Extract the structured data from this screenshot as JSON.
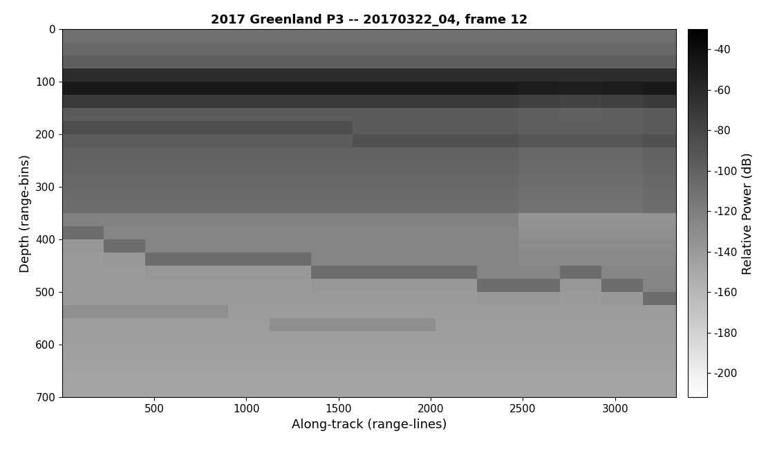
{
  "chart_data": {
    "type": "heatmap",
    "title": "2017 Greenland P3 -- 20170322_04, frame 12",
    "x_label": "Along-track (range-lines)",
    "y_label": "Depth (range-bins)",
    "xlim": [
      1,
      3330
    ],
    "ylim": [
      700,
      0
    ],
    "xticks": [
      500,
      1000,
      1500,
      2000,
      2500,
      3000
    ],
    "yticks": [
      0,
      100,
      200,
      300,
      400,
      500,
      600,
      700
    ],
    "x_edges": [
      1,
      225,
      450,
      675,
      900,
      1125,
      1350,
      1575,
      1800,
      2025,
      2250,
      2475,
      2700,
      2925,
      3150,
      3330
    ],
    "y_edges": [
      0,
      25,
      50,
      75,
      100,
      125,
      150,
      175,
      200,
      225,
      250,
      275,
      300,
      325,
      350,
      375,
      400,
      425,
      450,
      475,
      500,
      525,
      550,
      575,
      600,
      625,
      650,
      675,
      700
    ],
    "cells": [
      [
        -110,
        -110,
        -110,
        -110,
        -110,
        -110,
        -110,
        -110,
        -110,
        -110,
        -110,
        -110,
        -110,
        -110,
        -110
      ],
      [
        -105,
        -105,
        -105,
        -105,
        -105,
        -105,
        -105,
        -105,
        -105,
        -105,
        -105,
        -105,
        -105,
        -105,
        -105
      ],
      [
        -98,
        -98,
        -98,
        -98,
        -98,
        -98,
        -98,
        -98,
        -98,
        -98,
        -98,
        -98,
        -98,
        -98,
        -98
      ],
      [
        -62,
        -62,
        -62,
        -62,
        -62,
        -62,
        -62,
        -62,
        -62,
        -62,
        -62,
        -62,
        -62,
        -62,
        -62
      ],
      [
        -48,
        -48,
        -48,
        -48,
        -48,
        -48,
        -48,
        -48,
        -48,
        -48,
        -48,
        -50,
        -52,
        -50,
        -48
      ],
      [
        -72,
        -72,
        -72,
        -72,
        -72,
        -72,
        -72,
        -72,
        -72,
        -72,
        -72,
        -76,
        -78,
        -76,
        -72
      ],
      [
        -95,
        -95,
        -95,
        -95,
        -95,
        -95,
        -95,
        -95,
        -95,
        -95,
        -95,
        -98,
        -99,
        -98,
        -95
      ],
      [
        -86,
        -86,
        -86,
        -86,
        -86,
        -86,
        -86,
        -95,
        -95,
        -95,
        -95,
        -98,
        -98,
        -98,
        -95
      ],
      [
        -96,
        -96,
        -96,
        -96,
        -96,
        -96,
        -96,
        -88,
        -88,
        -88,
        -88,
        -92,
        -92,
        -92,
        -88
      ],
      [
        -100,
        -100,
        -100,
        -100,
        -100,
        -100,
        -100,
        -100,
        -100,
        -100,
        -100,
        -104,
        -104,
        -104,
        -100
      ],
      [
        -102,
        -102,
        -102,
        -102,
        -102,
        -102,
        -102,
        -102,
        -102,
        -102,
        -102,
        -106,
        -106,
        -106,
        -102
      ],
      [
        -104,
        -104,
        -104,
        -104,
        -104,
        -104,
        -104,
        -104,
        -104,
        -104,
        -104,
        -108,
        -108,
        -108,
        -104
      ],
      [
        -106,
        -106,
        -106,
        -106,
        -106,
        -106,
        -106,
        -106,
        -106,
        -106,
        -106,
        -110,
        -110,
        -110,
        -106
      ],
      [
        -108,
        -108,
        -108,
        -108,
        -108,
        -108,
        -108,
        -108,
        -108,
        -108,
        -108,
        -112,
        -112,
        -112,
        -108
      ],
      [
        -122,
        -122,
        -122,
        -122,
        -122,
        -122,
        -122,
        -122,
        -122,
        -122,
        -122,
        -135,
        -135,
        -135,
        -135
      ],
      [
        -108,
        -125,
        -125,
        -125,
        -125,
        -125,
        -125,
        -125,
        -125,
        -125,
        -125,
        -132,
        -132,
        -132,
        -132
      ],
      [
        -138,
        -108,
        -125,
        -125,
        -125,
        -125,
        -125,
        -125,
        -125,
        -125,
        -125,
        -130,
        -130,
        -130,
        -130
      ],
      [
        -140,
        -138,
        -108,
        -108,
        -108,
        -108,
        -125,
        -125,
        -125,
        -125,
        -125,
        -128,
        -128,
        -128,
        -128
      ],
      [
        -140,
        -140,
        -138,
        -138,
        -138,
        -138,
        -108,
        -108,
        -108,
        -108,
        -125,
        -125,
        -108,
        -125,
        -125
      ],
      [
        -140,
        -140,
        -140,
        -140,
        -140,
        -140,
        -138,
        -138,
        -138,
        -138,
        -108,
        -108,
        -138,
        -108,
        -125
      ],
      [
        -140,
        -140,
        -140,
        -140,
        -140,
        -140,
        -140,
        -140,
        -140,
        -140,
        -138,
        -138,
        -140,
        -138,
        -108
      ],
      [
        -132,
        -132,
        -132,
        -132,
        -141,
        -141,
        -141,
        -141,
        -141,
        -141,
        -141,
        -141,
        -141,
        -141,
        -141
      ],
      [
        -142,
        -142,
        -142,
        -142,
        -142,
        -132,
        -132,
        -132,
        -132,
        -142,
        -142,
        -142,
        -142,
        -142,
        -142
      ],
      [
        -143,
        -143,
        -143,
        -143,
        -143,
        -143,
        -143,
        -143,
        -143,
        -143,
        -143,
        -143,
        -143,
        -143,
        -143
      ],
      [
        -144,
        -144,
        -144,
        -144,
        -144,
        -144,
        -144,
        -144,
        -144,
        -144,
        -144,
        -144,
        -144,
        -144,
        -144
      ],
      [
        -145,
        -145,
        -145,
        -145,
        -145,
        -145,
        -145,
        -145,
        -145,
        -145,
        -145,
        -145,
        -145,
        -145,
        -145
      ],
      [
        -146,
        -146,
        -146,
        -146,
        -146,
        -146,
        -146,
        -146,
        -146,
        -146,
        -146,
        -146,
        -146,
        -146,
        -146
      ],
      [
        -147,
        -147,
        -147,
        -147,
        -147,
        -147,
        -147,
        -147,
        -147,
        -147,
        -147,
        -147,
        -147,
        -147,
        -147
      ]
    ],
    "colorbar": {
      "label": "Relative Power (dB)",
      "range": [
        -212,
        -30
      ],
      "ticks": [
        -200,
        -180,
        -160,
        -140,
        -120,
        -100,
        -80,
        -60,
        -40
      ]
    }
  }
}
